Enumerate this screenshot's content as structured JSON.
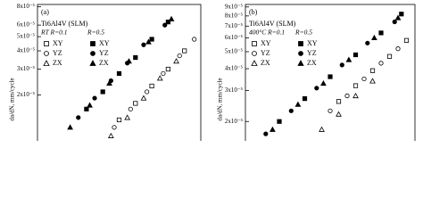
{
  "chart_data": [
    {
      "type": "scatter",
      "panel_label": "(a)",
      "material": "Ti6Al4V (SLM)",
      "condition_label": "RT R=0.1",
      "condition_label_2": "R=0.5",
      "y_label": "da/dN, mm/cycle",
      "xlim": [
        0,
        100
      ],
      "ylim": [
        9.7e-06,
        8.3e-05
      ],
      "y_log": true,
      "yticks": [
        {
          "value": 8e-05,
          "label": "8x10⁻⁵"
        },
        {
          "value": 6e-05,
          "label": "6x10⁻⁵"
        },
        {
          "value": 5e-05,
          "label": "5x10⁻⁵"
        },
        {
          "value": 4e-05,
          "label": "4x10⁻⁵"
        },
        {
          "value": 3e-05,
          "label": "3x10⁻⁵"
        },
        {
          "value": 2e-05,
          "label": "2x10⁻⁵"
        }
      ],
      "series": [
        {
          "name": "XY",
          "marker": "square",
          "filled": false,
          "color": "#000000",
          "x": [
            50,
            60,
            70,
            80,
            90
          ],
          "values": [
            1.35e-05,
            1.75e-05,
            2.3e-05,
            3e-05,
            4e-05
          ]
        },
        {
          "name": "YZ",
          "marker": "circle",
          "filled": false,
          "color": "#000000",
          "x": [
            47,
            57,
            67,
            77,
            87,
            96
          ],
          "values": [
            1.2e-05,
            1.6e-05,
            2.1e-05,
            2.8e-05,
            3.7e-05,
            4.8e-05
          ]
        },
        {
          "name": "ZX",
          "marker": "triangle",
          "filled": false,
          "color": "#000000",
          "x": [
            45,
            55,
            65,
            75,
            85
          ],
          "values": [
            1.05e-05,
            1.4e-05,
            1.9e-05,
            2.6e-05,
            3.4e-05
          ]
        },
        {
          "name": "XY",
          "marker": "square",
          "filled": true,
          "color": "#000000",
          "x": [
            30,
            40,
            50,
            60,
            70,
            80
          ],
          "values": [
            1.6e-05,
            2.1e-05,
            2.8e-05,
            3.6e-05,
            4.8e-05,
            6.3e-05
          ]
        },
        {
          "name": "YZ",
          "marker": "circle",
          "filled": true,
          "color": "#000000",
          "x": [
            25,
            35,
            45,
            55,
            65,
            78
          ],
          "values": [
            1.4e-05,
            1.9e-05,
            2.5e-05,
            3.3e-05,
            4.4e-05,
            6e-05
          ]
        },
        {
          "name": "ZX",
          "marker": "triangle",
          "filled": true,
          "color": "#000000",
          "x": [
            20,
            32,
            44,
            56,
            68,
            82
          ],
          "values": [
            1.2e-05,
            1.7e-05,
            2.4e-05,
            3.4e-05,
            4.6e-05,
            6.6e-05
          ]
        }
      ]
    },
    {
      "type": "scatter",
      "panel_label": "(b)",
      "material": "Ti6Al4V (SLM)",
      "condition_label": "400°C R=0.1",
      "condition_label_2": "R=0.5",
      "y_label": "da/dN, mm/cycle",
      "xlim": [
        0,
        100
      ],
      "ylim": [
        1.55e-05,
        9.3e-05
      ],
      "y_log": true,
      "yticks": [
        {
          "value": 9e-05,
          "label": "9x10⁻⁵"
        },
        {
          "value": 8e-05,
          "label": "8x10⁻⁵"
        },
        {
          "value": 7e-05,
          "label": "7x10⁻⁵"
        },
        {
          "value": 6e-05,
          "label": "6x10⁻⁵"
        },
        {
          "value": 5e-05,
          "label": "5x10⁻⁵"
        },
        {
          "value": 4e-05,
          "label": "4x10⁻⁵"
        },
        {
          "value": 3e-05,
          "label": "3x10⁻⁵"
        },
        {
          "value": 2e-05,
          "label": "2x10⁻⁵"
        }
      ],
      "series": [
        {
          "name": "XY",
          "marker": "square",
          "filled": false,
          "color": "#000000",
          "x": [
            55,
            65,
            75,
            85,
            95
          ],
          "values": [
            2.6e-05,
            3.2e-05,
            3.9e-05,
            4.7e-05,
            5.8e-05
          ]
        },
        {
          "name": "YZ",
          "marker": "circle",
          "filled": false,
          "color": "#000000",
          "x": [
            50,
            60,
            70,
            80,
            90
          ],
          "values": [
            2.3e-05,
            2.8e-05,
            3.5e-05,
            4.3e-05,
            5.2e-05
          ]
        },
        {
          "name": "ZX",
          "marker": "triangle",
          "filled": false,
          "color": "#000000",
          "x": [
            45,
            55,
            65,
            75
          ],
          "values": [
            1.8e-05,
            2.2e-05,
            2.8e-05,
            3.4e-05
          ]
        },
        {
          "name": "XY",
          "marker": "square",
          "filled": true,
          "color": "#000000",
          "x": [
            20,
            35,
            50,
            65,
            80,
            92
          ],
          "values": [
            2e-05,
            2.7e-05,
            3.6e-05,
            4.8e-05,
            6.4e-05,
            8.2e-05
          ]
        },
        {
          "name": "YZ",
          "marker": "circle",
          "filled": true,
          "color": "#000000",
          "x": [
            12,
            27,
            42,
            57,
            72,
            88
          ],
          "values": [
            1.7e-05,
            2.3e-05,
            3.1e-05,
            4.2e-05,
            5.6e-05,
            7.4e-05
          ]
        },
        {
          "name": "ZX",
          "marker": "triangle",
          "filled": true,
          "color": "#000000",
          "x": [
            16,
            31,
            46,
            61,
            76,
            90
          ],
          "values": [
            1.8e-05,
            2.5e-05,
            3.3e-05,
            4.5e-05,
            6e-05,
            7.8e-05
          ]
        }
      ]
    }
  ]
}
